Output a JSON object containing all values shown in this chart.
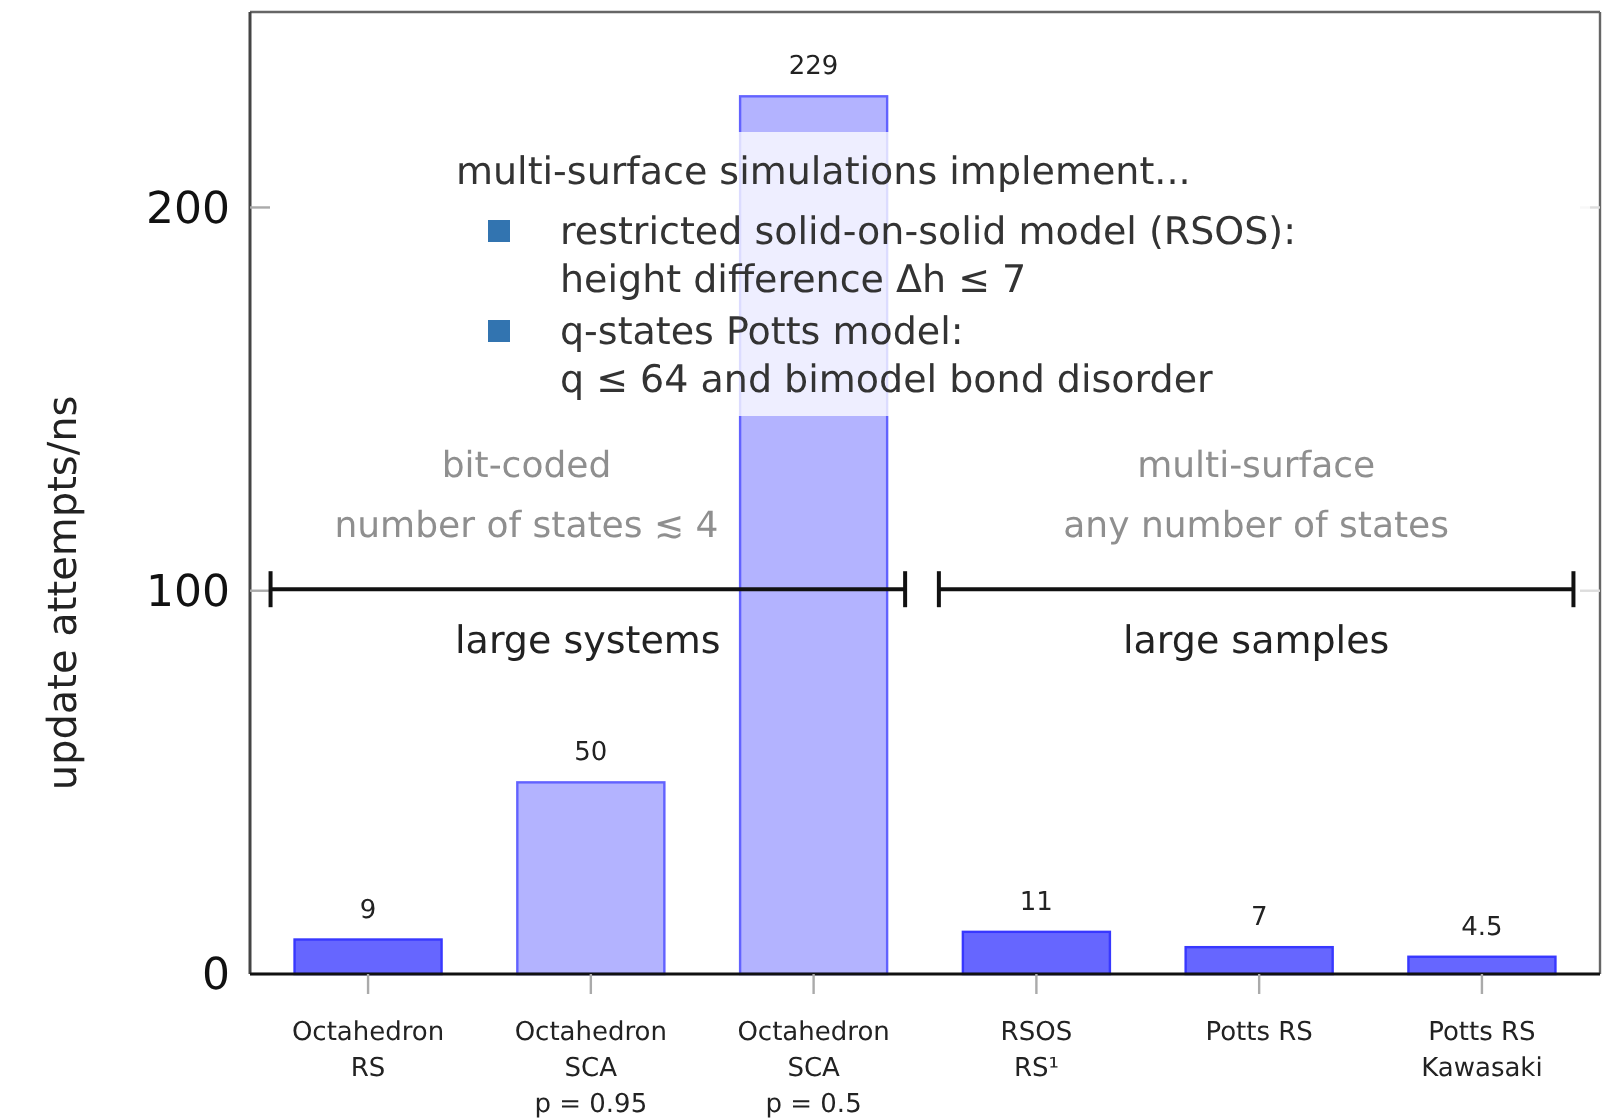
{
  "chart_data": {
    "type": "bar",
    "categories": [
      "Octahedron\nRS",
      "Octahedron\nSCA\np = 0.95",
      "Octahedron\nSCA\np = 0.5",
      "RSOS\nRS¹",
      "Potts RS",
      "Potts RS\nKawasaki"
    ],
    "values": [
      9,
      50,
      229,
      11,
      7,
      4.5
    ],
    "colors": [
      "#6666ff",
      "#b3b3ff",
      "#b3b3ff",
      "#6666ff",
      "#6666ff",
      "#6666ff"
    ],
    "ylabel": "update attempts/ns",
    "ylim": [
      0,
      251
    ],
    "yticks": [
      0,
      100,
      200
    ],
    "data_labels": true,
    "annotations": [
      "multi-surface simulations implement...",
      "restricted solid-on-solid model (RSOS):\nheight difference Δh ≤ 7",
      "q-states Potts model:\nq ≤ 64 and bimodel bond disorder",
      "bit-coded\nnumber of states ≲ 4",
      "large systems",
      "multi-surface\nany number of states",
      "large samples"
    ]
  }
}
